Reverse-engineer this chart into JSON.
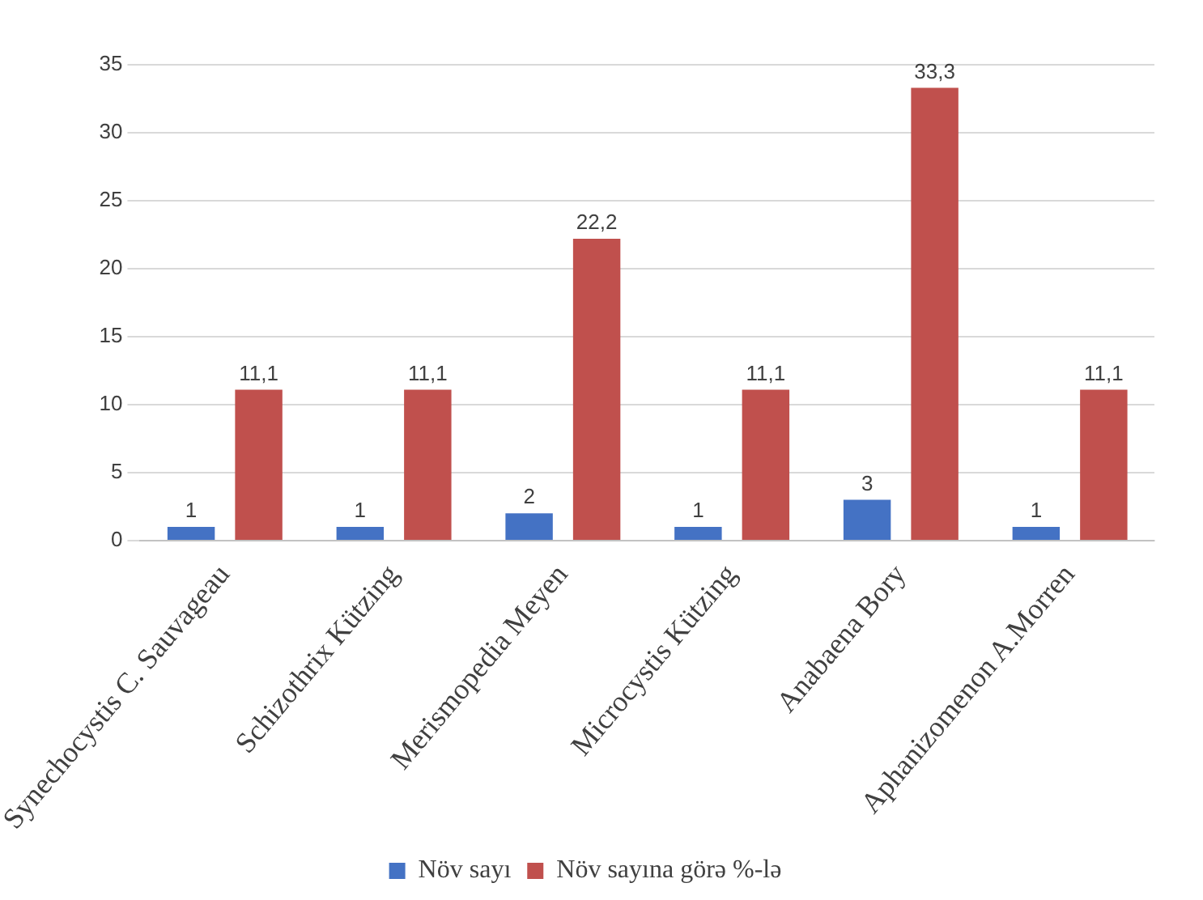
{
  "chart_data": {
    "type": "bar",
    "categories": [
      "Synechocystis C. Sauvageau",
      "Schizothrix Kützing",
      "Merismopedia Meyen",
      "Microcystis Kützing",
      "Anabaena Bory",
      "Aphanizomenon A.Morren"
    ],
    "series": [
      {
        "name": "Növ sayı",
        "color": "#4472c4",
        "values": [
          1,
          1,
          2,
          1,
          3,
          1
        ],
        "value_labels": [
          "1",
          "1",
          "2",
          "1",
          "3",
          "1"
        ]
      },
      {
        "name": "Növ sayına görə %-lə",
        "color": "#c0504d",
        "values": [
          11.1,
          11.1,
          22.2,
          11.1,
          33.3,
          11.1
        ],
        "value_labels": [
          "11,1",
          "11,1",
          "22,2",
          "11,1",
          "33,3",
          "11,1"
        ]
      }
    ],
    "ylim": [
      0,
      35
    ],
    "yticks": [
      0,
      5,
      10,
      15,
      20,
      25,
      30,
      35
    ],
    "grid": "y",
    "legend": "bottom"
  }
}
